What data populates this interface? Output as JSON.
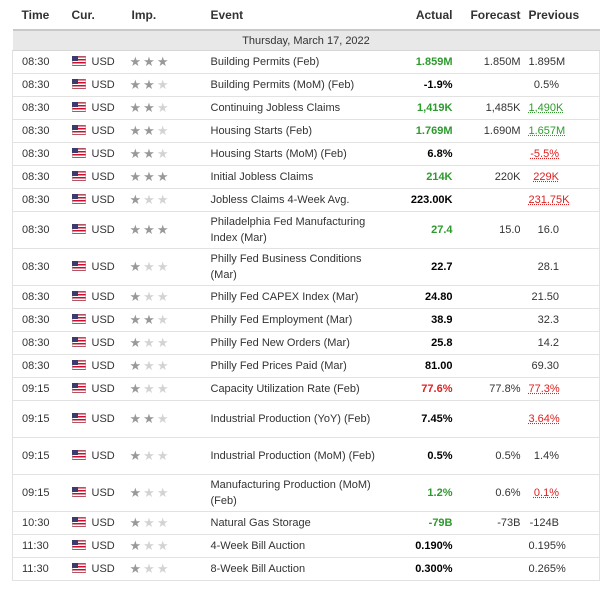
{
  "columns": {
    "time": "Time",
    "currency": "Cur.",
    "importance": "Imp.",
    "event": "Event",
    "actual": "Actual",
    "forecast": "Forecast",
    "previous": "Previous"
  },
  "date_header": "Thursday, March 17, 2022",
  "colors": {
    "green": "#2e9a2e",
    "red": "#e02020",
    "star_on": "#999999",
    "star_off": "#d3d3d3"
  },
  "rows": [
    {
      "time": "08:30",
      "cur": "USD",
      "imp": 3,
      "event": "Building Permits (Feb)",
      "actual": "1.859M",
      "actual_color": "green",
      "forecast": "1.850M",
      "previous": "1.895M",
      "previous_color": "black"
    },
    {
      "time": "08:30",
      "cur": "USD",
      "imp": 2,
      "event": "Building Permits (MoM) (Feb)",
      "actual": "-1.9%",
      "actual_color": "black",
      "forecast": "",
      "previous": "0.5%",
      "previous_color": "black"
    },
    {
      "time": "08:30",
      "cur": "USD",
      "imp": 2,
      "event": "Continuing Jobless Claims",
      "actual": "1,419K",
      "actual_color": "green",
      "forecast": "1,485K",
      "previous": "1,490K",
      "previous_color": "green"
    },
    {
      "time": "08:30",
      "cur": "USD",
      "imp": 2,
      "event": "Housing Starts (Feb)",
      "actual": "1.769M",
      "actual_color": "green",
      "forecast": "1.690M",
      "previous": "1.657M",
      "previous_color": "green"
    },
    {
      "time": "08:30",
      "cur": "USD",
      "imp": 2,
      "event": "Housing Starts (MoM) (Feb)",
      "actual": "6.8%",
      "actual_color": "black",
      "forecast": "",
      "previous": "-5.5%",
      "previous_color": "red"
    },
    {
      "time": "08:30",
      "cur": "USD",
      "imp": 3,
      "event": "Initial Jobless Claims",
      "actual": "214K",
      "actual_color": "green",
      "forecast": "220K",
      "previous": "229K",
      "previous_color": "red"
    },
    {
      "time": "08:30",
      "cur": "USD",
      "imp": 1,
      "event": "Jobless Claims 4-Week Avg.",
      "actual": "223.00K",
      "actual_color": "black",
      "forecast": "",
      "previous": "231.75K",
      "previous_color": "red"
    },
    {
      "time": "08:30",
      "cur": "USD",
      "imp": 3,
      "event": "Philadelphia Fed Manufacturing Index (Mar)",
      "actual": "27.4",
      "actual_color": "green",
      "forecast": "15.0",
      "previous": "16.0",
      "previous_color": "black"
    },
    {
      "time": "08:30",
      "cur": "USD",
      "imp": 1,
      "event": "Philly Fed Business Conditions (Mar)",
      "actual": "22.7",
      "actual_color": "black",
      "forecast": "",
      "previous": "28.1",
      "previous_color": "black"
    },
    {
      "time": "08:30",
      "cur": "USD",
      "imp": 1,
      "event": "Philly Fed CAPEX Index (Mar)",
      "actual": "24.80",
      "actual_color": "black",
      "forecast": "",
      "previous": "21.50",
      "previous_color": "black"
    },
    {
      "time": "08:30",
      "cur": "USD",
      "imp": 2,
      "event": "Philly Fed Employment (Mar)",
      "actual": "38.9",
      "actual_color": "black",
      "forecast": "",
      "previous": "32.3",
      "previous_color": "black"
    },
    {
      "time": "08:30",
      "cur": "USD",
      "imp": 1,
      "event": "Philly Fed New Orders (Mar)",
      "actual": "25.8",
      "actual_color": "black",
      "forecast": "",
      "previous": "14.2",
      "previous_color": "black"
    },
    {
      "time": "08:30",
      "cur": "USD",
      "imp": 1,
      "event": "Philly Fed Prices Paid (Mar)",
      "actual": "81.00",
      "actual_color": "black",
      "forecast": "",
      "previous": "69.30",
      "previous_color": "black"
    },
    {
      "time": "09:15",
      "cur": "USD",
      "imp": 1,
      "event": "Capacity Utilization Rate (Feb)",
      "actual": "77.6%",
      "actual_color": "red",
      "forecast": "77.8%",
      "previous": "77.3%",
      "previous_color": "red"
    },
    {
      "time": "09:15",
      "cur": "USD",
      "imp": 2,
      "event": "Industrial Production (YoY) (Feb)",
      "actual": "7.45%",
      "actual_color": "black",
      "forecast": "",
      "previous": "3.64%",
      "previous_color": "red"
    },
    {
      "time": "09:15",
      "cur": "USD",
      "imp": 1,
      "event": "Industrial Production (MoM) (Feb)",
      "actual": "0.5%",
      "actual_color": "black",
      "forecast": "0.5%",
      "previous": "1.4%",
      "previous_color": "black"
    },
    {
      "time": "09:15",
      "cur": "USD",
      "imp": 1,
      "event": "Manufacturing Production (MoM) (Feb)",
      "actual": "1.2%",
      "actual_color": "green",
      "forecast": "0.6%",
      "previous": "0.1%",
      "previous_color": "red"
    },
    {
      "time": "10:30",
      "cur": "USD",
      "imp": 1,
      "event": "Natural Gas Storage",
      "actual": "-79B",
      "actual_color": "green",
      "forecast": "-73B",
      "previous": "-124B",
      "previous_color": "black"
    },
    {
      "time": "11:30",
      "cur": "USD",
      "imp": 1,
      "event": "4-Week Bill Auction",
      "actual": "0.190%",
      "actual_color": "black",
      "forecast": "",
      "previous": "0.195%",
      "previous_color": "black"
    },
    {
      "time": "11:30",
      "cur": "USD",
      "imp": 1,
      "event": "8-Week Bill Auction",
      "actual": "0.300%",
      "actual_color": "black",
      "forecast": "",
      "previous": "0.265%",
      "previous_color": "black"
    }
  ]
}
